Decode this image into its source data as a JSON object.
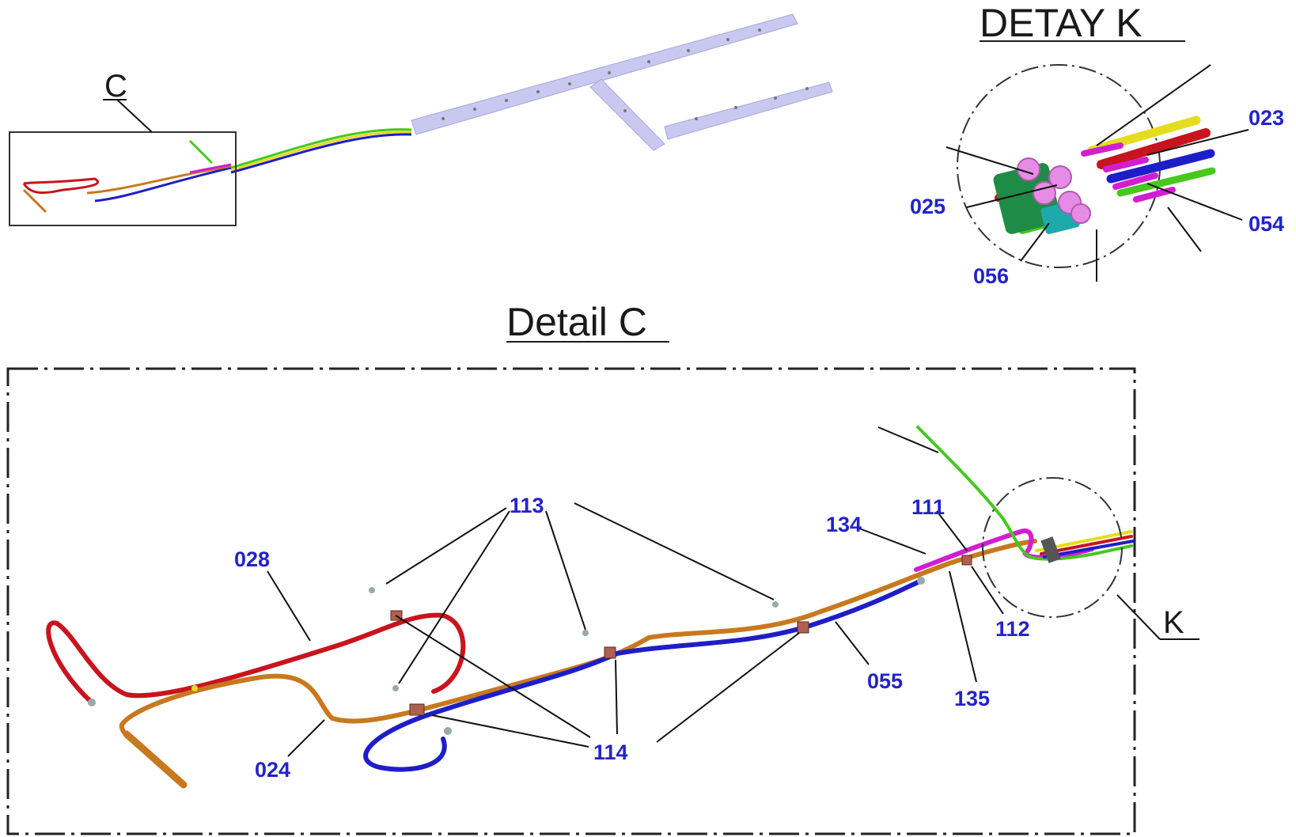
{
  "titles": {
    "detail_k": "DETAY K",
    "detail_c": "Detail C"
  },
  "view_letters": {
    "c": "C",
    "k": "K"
  },
  "callouts_detail_k": {
    "p023": "023",
    "p025": "025",
    "p054": "054",
    "p056": "056"
  },
  "callouts_detail_c": {
    "p028": "028",
    "p113": "113",
    "p134": "134",
    "p111": "111",
    "p112": "112",
    "p055": "055",
    "p135": "135",
    "p024": "024",
    "p114": "114"
  },
  "colors": {
    "tube_red": "#c8141e",
    "tube_orange": "#c8781e",
    "tube_blue": "#1e1ec8",
    "tube_green": "#46c81e",
    "tube_yellow": "#e6dc1e",
    "tube_magenta": "#d21ed2",
    "connector_pink": "#e68ce6",
    "bracket_green": "#1e8c46",
    "bracket_teal": "#1eaaaa",
    "rail": "#c8c8f0",
    "callout_text": "#2323c8"
  }
}
